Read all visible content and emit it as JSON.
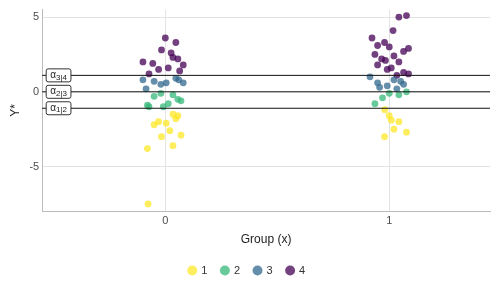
{
  "chart_data": {
    "type": "scatter",
    "x_label": "Group (x)",
    "y_label": "Y*",
    "xlim": [
      -0.55,
      1.45
    ],
    "xticks": [
      0,
      1
    ],
    "ylim": [
      -8,
      5.5
    ],
    "yticks": [
      -5,
      0,
      5
    ],
    "grid": true,
    "legend": "bottom",
    "marker": "circle",
    "series": [
      {
        "name": "1",
        "color": "#FDE725",
        "x": [
          -0.03,
          0.034,
          -0.05,
          0.047,
          0.02,
          -0.017,
          0.034,
          -0.08,
          0.07,
          -0.077,
          0.004,
          0.056,
          0.98,
          1.0,
          1.043,
          1.021,
          1.077,
          0.979,
          1.009
        ],
        "values": [
          -2.0,
          -1.5,
          -2.2,
          -1.8,
          -2.6,
          -3.0,
          -3.6,
          -3.8,
          -2.9,
          -7.5,
          -2.1,
          -1.6,
          -1.2,
          -1.6,
          -2.0,
          -2.5,
          -2.7,
          -3.0,
          -1.9
        ]
      },
      {
        "name": "2",
        "color": "#35B779",
        "x": [
          -0.073,
          0.013,
          -0.05,
          0.034,
          0.056,
          -0.009,
          0.07,
          -0.02,
          -0.08,
          0.936,
          0.97,
          1.043,
          1.077,
          1.0
        ],
        "values": [
          -1.0,
          -0.8,
          -0.3,
          -0.2,
          -0.5,
          -1.0,
          -0.6,
          -0.1,
          -0.9,
          -0.8,
          -0.4,
          -0.2,
          0.0,
          -0.1
        ]
      },
      {
        "name": "3",
        "color": "#31688E",
        "x": [
          -0.1,
          -0.05,
          0.004,
          0.047,
          0.08,
          -0.086,
          -0.02,
          0.06,
          0.914,
          0.948,
          0.991,
          1.034,
          1.051,
          0.957,
          1.064,
          1.021
        ],
        "values": [
          0.8,
          0.7,
          0.6,
          0.9,
          0.6,
          0.2,
          0.5,
          0.8,
          1.0,
          0.6,
          0.4,
          0.2,
          0.7,
          0.3,
          0.5,
          0.8
        ]
      },
      {
        "name": "4",
        "color": "#440154",
        "x": [
          0.0,
          0.047,
          -0.017,
          0.034,
          -0.1,
          -0.056,
          0.013,
          0.064,
          0.08,
          -0.073,
          0.056,
          -0.03,
          0.026,
          1.043,
          1.077,
          1.017,
          0.923,
          0.979,
          1.0,
          1.064,
          0.936,
          1.021,
          0.966,
          1.043,
          0.948,
          0.991,
          1.064,
          1.086,
          1.009,
          1.086,
          1.034,
          0.948,
          0.983
        ],
        "values": [
          3.6,
          3.3,
          2.8,
          2.3,
          2.0,
          1.9,
          1.6,
          1.4,
          1.8,
          1.2,
          2.2,
          1.5,
          2.6,
          5.0,
          5.1,
          4.1,
          3.6,
          3.3,
          3.0,
          2.7,
          2.5,
          2.4,
          2.2,
          2.0,
          1.8,
          1.5,
          1.3,
          1.2,
          1.6,
          2.9,
          1.1,
          3.1,
          2.1
        ]
      }
    ],
    "annotations": [
      {
        "label": "α3|4",
        "value": 1.1
      },
      {
        "label": "α2|3",
        "value": 0.0
      },
      {
        "label": "α1|2",
        "value": -1.1
      }
    ]
  }
}
